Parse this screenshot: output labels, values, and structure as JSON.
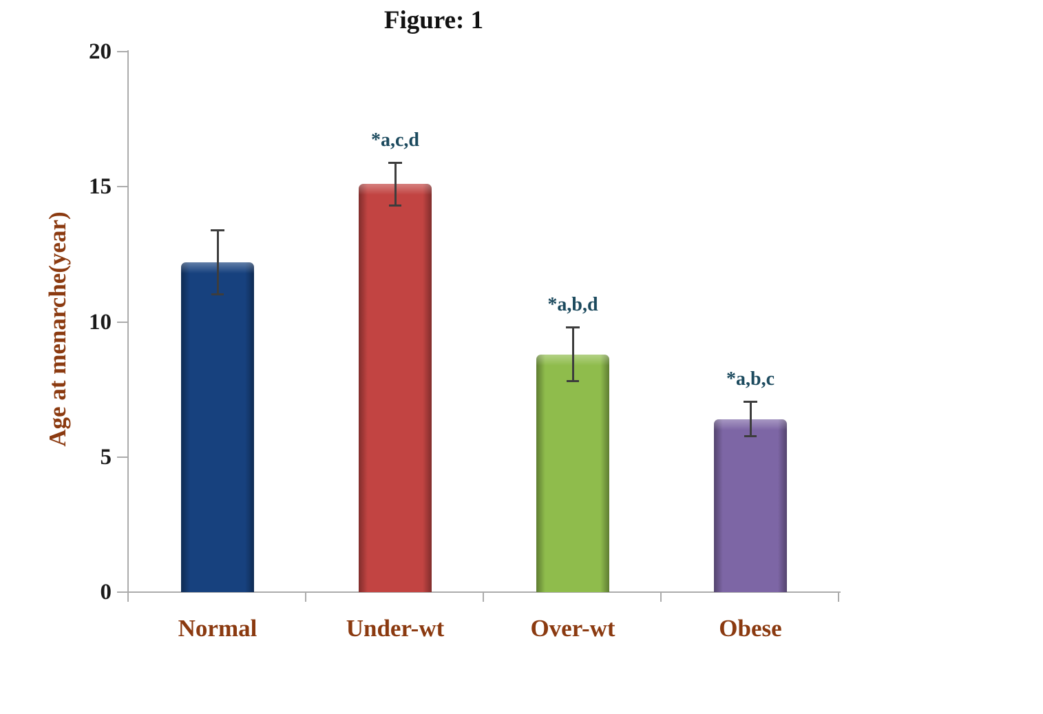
{
  "figure": {
    "title": "Figure: 1"
  },
  "chart_data": {
    "type": "bar",
    "title": "Figure: 1",
    "xlabel": "",
    "ylabel": "Age at menarche(year)",
    "categories": [
      "Normal",
      "Under-wt",
      "Over-wt",
      "Obese"
    ],
    "values": [
      12.2,
      15.1,
      8.8,
      6.4
    ],
    "errors": [
      1.2,
      0.8,
      1.0,
      0.65
    ],
    "annotations": [
      "",
      "*a,c,d",
      "*a,b,d",
      "*a,b,c"
    ],
    "bar_colors": [
      "#17417e",
      "#c24442",
      "#8fbc4c",
      "#7d66a5"
    ],
    "ylim": [
      0,
      20
    ],
    "yticks": [
      0,
      5,
      10,
      15,
      20
    ],
    "grid": false,
    "legend": false
  },
  "colors": {
    "background": "#ffffff",
    "title_text": "#111111",
    "axis_line": "#ababab",
    "y_tick_label": "#1a1a1a",
    "axis_title_text": "#8b3a10",
    "category_label_text": "#8b3a10",
    "annotation_text": "#1c4a5e",
    "error_bar": "#3d3d3d"
  }
}
